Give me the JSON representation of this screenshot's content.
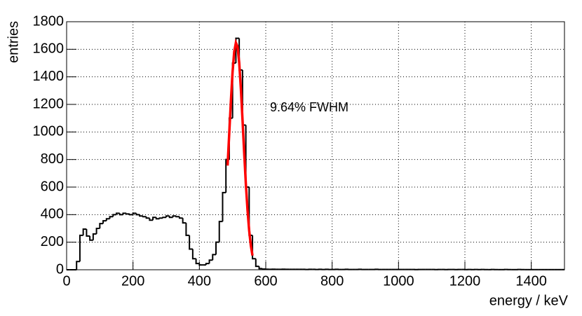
{
  "chart_data": {
    "type": "histogram",
    "xlabel": "energy / keV",
    "ylabel": "entries",
    "annotation": "9.64% FWHM",
    "color": "#000000",
    "xlim": [
      0,
      1500
    ],
    "ylim": [
      0,
      1800
    ],
    "xticks": [
      0,
      200,
      400,
      600,
      800,
      1000,
      1200,
      1400
    ],
    "yticks": [
      0,
      200,
      400,
      600,
      800,
      1000,
      1200,
      1400,
      1600,
      1800
    ],
    "grid": true,
    "bins": [
      0,
      10,
      20,
      30,
      40,
      50,
      60,
      70,
      80,
      90,
      100,
      110,
      120,
      130,
      140,
      150,
      160,
      170,
      180,
      190,
      200,
      210,
      220,
      230,
      240,
      250,
      260,
      270,
      280,
      290,
      300,
      310,
      320,
      330,
      340,
      350,
      360,
      370,
      380,
      390,
      400,
      410,
      420,
      430,
      440,
      450,
      460,
      470,
      480,
      490,
      500,
      510,
      520,
      530,
      540,
      550,
      560,
      570,
      580,
      590,
      600,
      610,
      620,
      630,
      640,
      650,
      660,
      670,
      680,
      690,
      700,
      710,
      720,
      730,
      740,
      750,
      760,
      770,
      780,
      790,
      800,
      810,
      820,
      830,
      840,
      850,
      860,
      870,
      880,
      890,
      900,
      910,
      920,
      930,
      940,
      950,
      960,
      970,
      980,
      990,
      1000,
      1010,
      1020,
      1030,
      1040,
      1050,
      1060,
      1070,
      1080,
      1090,
      1100,
      1110,
      1120,
      1130,
      1140,
      1150,
      1160,
      1170,
      1180,
      1190,
      1200,
      1210,
      1220,
      1230,
      1240,
      1250,
      1260,
      1270,
      1280,
      1290,
      1300,
      1310,
      1320,
      1330,
      1340,
      1350,
      1360,
      1370,
      1380,
      1390,
      1400,
      1410,
      1420,
      1430,
      1440,
      1450,
      1460,
      1470,
      1480,
      1490,
      1500
    ],
    "counts": [
      0,
      0,
      0,
      60,
      250,
      295,
      245,
      215,
      260,
      300,
      335,
      355,
      370,
      385,
      400,
      410,
      400,
      410,
      405,
      400,
      410,
      400,
      390,
      385,
      375,
      360,
      380,
      370,
      375,
      380,
      390,
      380,
      390,
      385,
      375,
      340,
      250,
      150,
      80,
      45,
      35,
      35,
      45,
      70,
      110,
      200,
      350,
      560,
      800,
      1100,
      1500,
      1680,
      1450,
      1050,
      600,
      250,
      80,
      25,
      8,
      5,
      4,
      3,
      4,
      3,
      3,
      4,
      3,
      3,
      3,
      3,
      3,
      3,
      2,
      3,
      3,
      2,
      3,
      2,
      3,
      2,
      2,
      3,
      2,
      2,
      3,
      2,
      2,
      2,
      3,
      2,
      2,
      2,
      2,
      3,
      2,
      2,
      2,
      2,
      2,
      2,
      2,
      2,
      2,
      2,
      2,
      1,
      2,
      2,
      2,
      2,
      2,
      1,
      2,
      2,
      1,
      2,
      2,
      1,
      2,
      2,
      1,
      2,
      1,
      2,
      1,
      2,
      1,
      1,
      2,
      1,
      1,
      1,
      2,
      1,
      1,
      1,
      2,
      1,
      1,
      1,
      1,
      1,
      1,
      1,
      1,
      1,
      1,
      1,
      1,
      1
    ],
    "fit": {
      "color": "#ff0000",
      "x": [
        485,
        490,
        495,
        500,
        505,
        510,
        515,
        520,
        525,
        530,
        535,
        540,
        545,
        550,
        555,
        560
      ],
      "values": [
        756,
        991,
        1227,
        1435,
        1583,
        1648,
        1620,
        1503,
        1315,
        1087,
        848,
        624,
        434,
        285,
        176,
        103
      ]
    }
  }
}
